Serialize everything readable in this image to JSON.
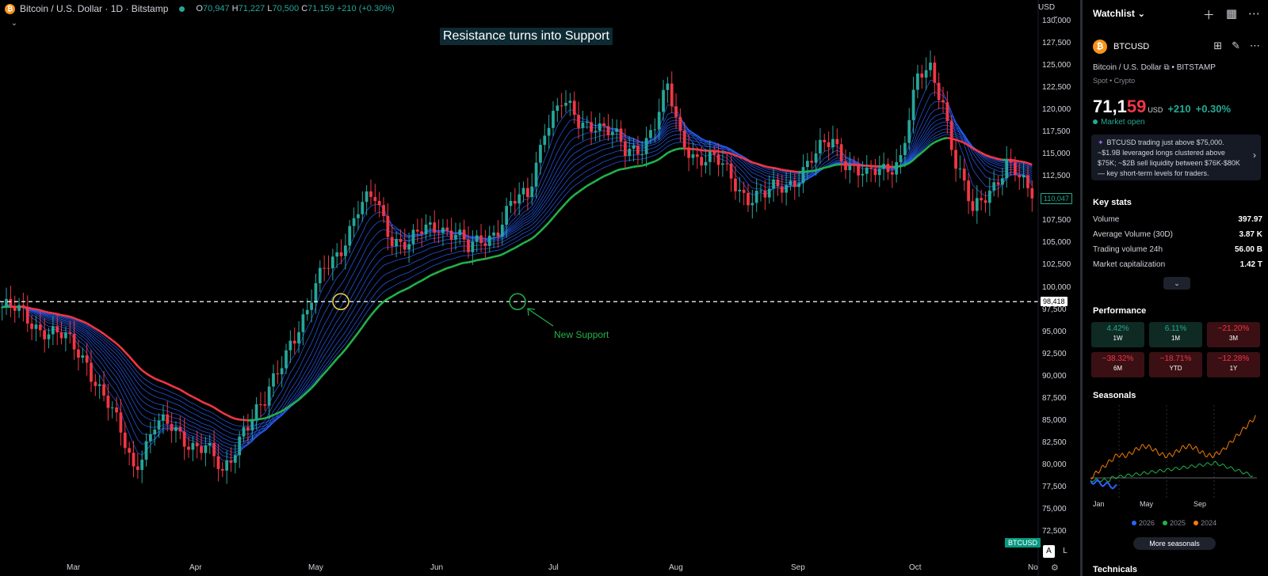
{
  "chart": {
    "symbol_title": "Bitcoin / U.S. Dollar · 1D · Bitstamp",
    "ohlc": {
      "o_label": "O",
      "o": "70,947",
      "h_label": "H",
      "h": "71,227",
      "l_label": "L",
      "l": "70,500",
      "c_label": "C",
      "c": "71,159",
      "change": "+210 (+0.30%)"
    },
    "currency_selector": "USD",
    "annotation_title": "Resistance turns into Support",
    "annotation_support": "New Support",
    "level_price_tag": "98,418",
    "current_price_tag": "110,047",
    "symbol_tag": "BTCUSD",
    "scale_buttons": [
      "A",
      "L"
    ],
    "colors": {
      "up": "#26a69a",
      "down": "#f23645",
      "ribbon_fast": "#2962ff",
      "ribbon_slow_red": "#f23645",
      "ribbon_slow_green": "#22b14c",
      "level_line": "#ffffff"
    }
  },
  "chart_data": {
    "type": "candlestick",
    "title": "Resistance turns into Support",
    "x_axis_labels": [
      "Mar",
      "Apr",
      "May",
      "Jun",
      "Jul",
      "Aug",
      "Sep",
      "Oct",
      "No"
    ],
    "y_axis_labels": [
      "130,000",
      "127,500",
      "125,000",
      "122,500",
      "120,000",
      "117,500",
      "115,000",
      "112,500",
      "110,000",
      "107,500",
      "105,000",
      "102,500",
      "100,000",
      "97,500",
      "95,000",
      "92,500",
      "90,000",
      "87,500",
      "85,000",
      "82,500",
      "80,000",
      "77,500",
      "75,000",
      "72,500"
    ],
    "ylim": [
      72500,
      130000
    ],
    "horizontal_level": 98418,
    "price_path": [
      [
        0,
        97800
      ],
      [
        10,
        95600
      ],
      [
        20,
        92000
      ],
      [
        26,
        85500
      ],
      [
        31,
        80000
      ],
      [
        36,
        84500
      ],
      [
        42,
        83500
      ],
      [
        48,
        82000
      ],
      [
        52,
        78500
      ],
      [
        57,
        84800
      ],
      [
        62,
        86500
      ],
      [
        68,
        94500
      ],
      [
        72,
        97000
      ],
      [
        76,
        102000
      ],
      [
        80,
        105000
      ],
      [
        84,
        108500
      ],
      [
        88,
        110000
      ],
      [
        92,
        106000
      ],
      [
        96,
        104500
      ],
      [
        100,
        106500
      ],
      [
        103,
        107500
      ],
      [
        107,
        106000
      ],
      [
        110,
        103800
      ],
      [
        113,
        105500
      ],
      [
        117,
        107000
      ],
      [
        120,
        109000
      ],
      [
        124,
        110200
      ],
      [
        128,
        118500
      ],
      [
        132,
        120500
      ],
      [
        136,
        118500
      ],
      [
        140,
        119000
      ],
      [
        144,
        117000
      ],
      [
        147,
        115000
      ],
      [
        151,
        116500
      ],
      [
        154,
        118500
      ],
      [
        157,
        122000
      ],
      [
        160,
        117000
      ],
      [
        164,
        115000
      ],
      [
        168,
        114000
      ],
      [
        172,
        112500
      ],
      [
        176,
        110500
      ],
      [
        180,
        110000
      ],
      [
        184,
        111500
      ],
      [
        188,
        113000
      ],
      [
        192,
        114500
      ],
      [
        196,
        116800
      ],
      [
        200,
        114000
      ],
      [
        204,
        112000
      ],
      [
        208,
        113500
      ],
      [
        212,
        115000
      ],
      [
        216,
        123000
      ],
      [
        219,
        124500
      ],
      [
        222,
        121500
      ],
      [
        225,
        114000
      ],
      [
        229,
        108000
      ],
      [
        233,
        111500
      ],
      [
        237,
        114000
      ],
      [
        240,
        111800
      ],
      [
        243,
        110047
      ]
    ],
    "ribbon": {
      "fast_color": "#2962ff",
      "slow_color_below": "#f23645",
      "slow_color_above": "#22b14c"
    }
  },
  "sidebar": {
    "watchlist_label": "Watchlist",
    "header_icons": [
      "plus-icon",
      "layout-icon",
      "more-icon"
    ],
    "symbol": "BTCUSD",
    "symbol_icons": [
      "grid-icon",
      "edit-icon",
      "more-icon"
    ],
    "full_name": "Bitcoin / U.S. Dollar",
    "exchange": "BITSTAMP",
    "category": "Spot • Crypto",
    "price_main": "71,1",
    "price_red": "59",
    "price_currency": "USD",
    "price_change": "+210",
    "price_change_pct": "+0.30%",
    "market_status": "Market open",
    "news": "BTCUSD trading just above $75,000. ~$1.9B leveraged longs clustered above $75K; ~$2B sell liquidity between $76K-$80K — key short-term levels for traders.",
    "key_stats_title": "Key stats",
    "key_stats": [
      {
        "label": "Volume",
        "value": "397.97"
      },
      {
        "label": "Average Volume (30D)",
        "value": "3.87 K"
      },
      {
        "label": "Trading volume 24h",
        "value": "56.00 B"
      },
      {
        "label": "Market capitalization",
        "value": "1.42 T"
      }
    ],
    "performance_title": "Performance",
    "performance": [
      {
        "value": "4.42%",
        "period": "1W",
        "sign": "pos"
      },
      {
        "value": "6.11%",
        "period": "1M",
        "sign": "pos"
      },
      {
        "value": "−21.20%",
        "period": "3M",
        "sign": "neg"
      },
      {
        "value": "−38.32%",
        "period": "6M",
        "sign": "neg"
      },
      {
        "value": "−18.71%",
        "period": "YTD",
        "sign": "neg"
      },
      {
        "value": "−12.28%",
        "period": "1Y",
        "sign": "neg"
      }
    ],
    "seasonals_title": "Seasonals",
    "seasonals_axis": [
      "Jan",
      "May",
      "Sep"
    ],
    "seasonals_legend": [
      {
        "year": "2026",
        "color": "#2962ff"
      },
      {
        "year": "2025",
        "color": "#22b14c"
      },
      {
        "year": "2024",
        "color": "#f57c00"
      }
    ],
    "more_seasonals": "More seasonals",
    "technicals_title": "Technicals"
  }
}
